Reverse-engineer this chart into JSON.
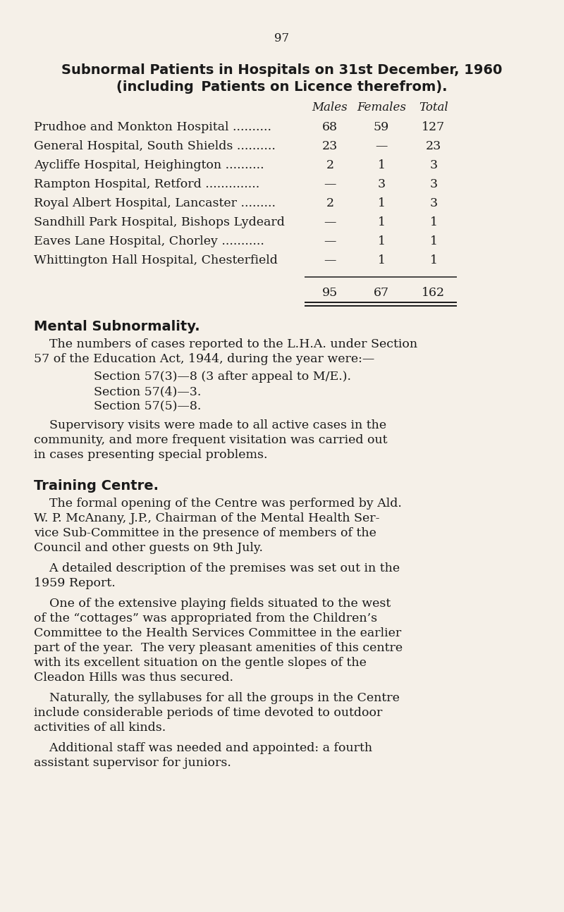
{
  "bg_color": "#f5f0e8",
  "text_color": "#1a1a1a",
  "page_number": "97",
  "title_line1": "Subnormal Patients in Hospitals on 31st December, 1960",
  "title_line2": "(including ·Patients on Licence therefrom).",
  "col_headers": [
    "Males",
    "Females",
    "Total"
  ],
  "table_rows": [
    [
      "Prudhoe and Monkton Hospital",
      "68",
      "59",
      "127"
    ],
    [
      "General Hospital, South Shields",
      "23",
      "—",
      "23"
    ],
    [
      "Aycliffe Hospital, Heighington",
      "2",
      "1",
      "3"
    ],
    [
      "Rampton Hospital, Retford",
      "—",
      "3",
      "3"
    ],
    [
      "Royal Albert Hospital, Lancaster",
      "2",
      "1",
      "3"
    ],
    [
      "Sandhill Park Hospital, Bishops Lydeard",
      "—",
      "1",
      "1"
    ],
    [
      "Eaves Lane Hospital, Chorley",
      "—",
      "1",
      "1"
    ],
    [
      "Whittington Hall Hospital, Chesterfield",
      "—",
      "1",
      "1"
    ]
  ],
  "table_totals": [
    "95",
    "67",
    "162"
  ],
  "dots_list": [
    " ..........",
    " ..........",
    " ..........",
    " ..............",
    " .........",
    "",
    " ...........",
    ""
  ],
  "section1_heading": "Mental Subnormality.",
  "section1_lines": [
    "    The numbers of cases reported to the L.H.A. under Section",
    "57 of the Education Act, 1944, during the year were:—"
  ],
  "section1_bullets": [
    "Section 57(3)—8 (3 after appeal to M/E.).",
    "Section 57(4)—3.",
    "Section 57(5)—8."
  ],
  "section1_para2_lines": [
    "    Supervisory visits were made to all active cases in the",
    "community, and more frequent visitation was carried out",
    "in cases presenting special problems."
  ],
  "section2_heading": "Training Centre.",
  "section2_para1_lines": [
    "    The formal opening of the Centre was performed by Ald.",
    "W. P. McAnany, J.P., Chairman of the Mental Health Ser-",
    "vice Sub-Committee in the presence of members of the",
    "Council and other guests on 9th July."
  ],
  "section2_para2_lines": [
    "    A detailed description of the premises was set out in the",
    "1959 Report."
  ],
  "section2_para3_lines": [
    "    One of the extensive playing fields situated to the west",
    "of the “cottages” was appropriated from the Children’s",
    "Committee to the Health Services Committee in the earlier",
    "part of the year.  The very pleasant amenities of this centre",
    "with its excellent situation on the gentle slopes of the",
    "Cleadon Hills was thus secured."
  ],
  "section2_para4_lines": [
    "    Naturally, the syllabuses for all the groups in the Centre",
    "include considerable periods of time devoted to outdoor",
    "activities of all kinds."
  ],
  "section2_para5_lines": [
    "    Additional staff was needed and appointed: a fourth",
    "assistant supervisor for juniors."
  ]
}
